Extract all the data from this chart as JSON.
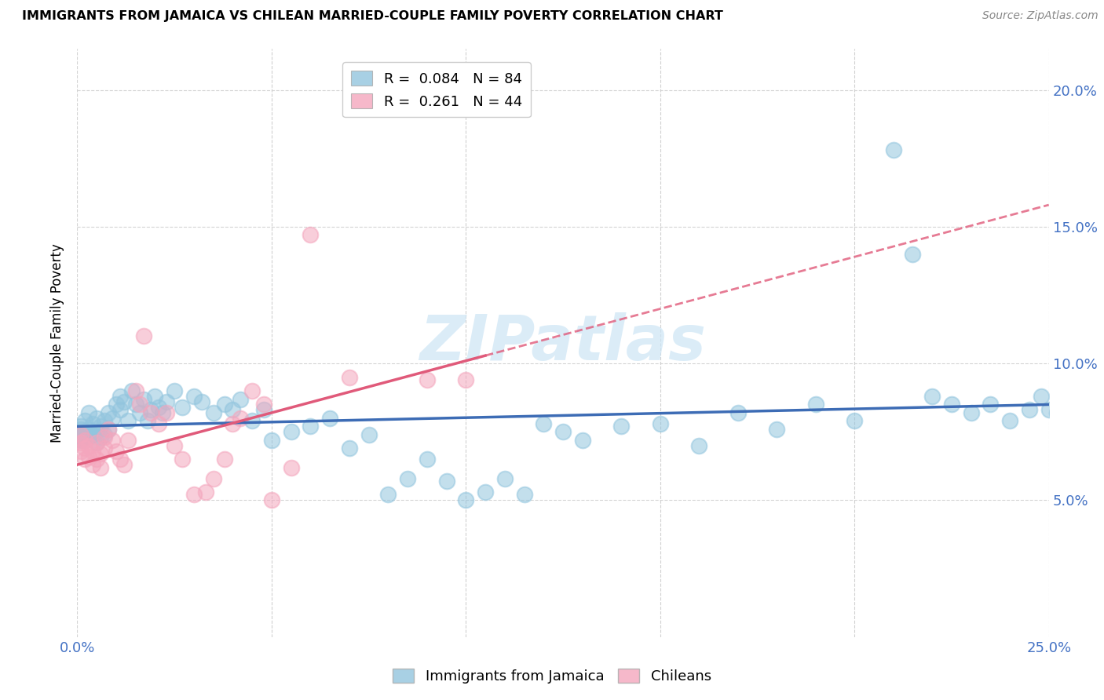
{
  "title": "IMMIGRANTS FROM JAMAICA VS CHILEAN MARRIED-COUPLE FAMILY POVERTY CORRELATION CHART",
  "source": "Source: ZipAtlas.com",
  "ylabel": "Married-Couple Family Poverty",
  "xlim": [
    0.0,
    0.25
  ],
  "ylim": [
    0.0,
    0.215
  ],
  "blue_color": "#92c5de",
  "pink_color": "#f4a6bd",
  "blue_line_color": "#3d6cb5",
  "pink_line_color": "#e05a7a",
  "watermark_color": "#cce5f5",
  "jamaica_N": 84,
  "chilean_N": 44,
  "jamaica_R": "0.084",
  "chilean_R": "0.261",
  "jamaica_intercept": 0.077,
  "jamaica_slope": 0.032,
  "chilean_intercept": 0.063,
  "chilean_slope": 0.38,
  "jamaica_x": [
    0.001,
    0.001,
    0.001,
    0.001,
    0.001,
    0.002,
    0.002,
    0.002,
    0.003,
    0.003,
    0.003,
    0.004,
    0.004,
    0.005,
    0.005,
    0.005,
    0.006,
    0.006,
    0.007,
    0.007,
    0.008,
    0.008,
    0.009,
    0.01,
    0.011,
    0.011,
    0.012,
    0.013,
    0.014,
    0.015,
    0.016,
    0.017,
    0.018,
    0.019,
    0.02,
    0.021,
    0.022,
    0.023,
    0.025,
    0.027,
    0.03,
    0.032,
    0.035,
    0.038,
    0.04,
    0.042,
    0.045,
    0.048,
    0.05,
    0.055,
    0.06,
    0.065,
    0.07,
    0.075,
    0.08,
    0.085,
    0.09,
    0.095,
    0.1,
    0.105,
    0.11,
    0.115,
    0.12,
    0.125,
    0.13,
    0.14,
    0.15,
    0.16,
    0.17,
    0.18,
    0.19,
    0.2,
    0.21,
    0.215,
    0.22,
    0.225,
    0.23,
    0.235,
    0.24,
    0.245,
    0.248,
    0.25,
    0.252,
    0.255
  ],
  "jamaica_y": [
    0.075,
    0.077,
    0.072,
    0.076,
    0.073,
    0.075,
    0.072,
    0.079,
    0.073,
    0.076,
    0.082,
    0.074,
    0.078,
    0.071,
    0.075,
    0.08,
    0.073,
    0.077,
    0.074,
    0.079,
    0.082,
    0.076,
    0.08,
    0.085,
    0.083,
    0.088,
    0.086,
    0.079,
    0.09,
    0.085,
    0.082,
    0.087,
    0.079,
    0.083,
    0.088,
    0.084,
    0.082,
    0.086,
    0.09,
    0.084,
    0.088,
    0.086,
    0.082,
    0.085,
    0.083,
    0.087,
    0.079,
    0.083,
    0.072,
    0.075,
    0.077,
    0.08,
    0.069,
    0.074,
    0.052,
    0.058,
    0.065,
    0.057,
    0.05,
    0.053,
    0.058,
    0.052,
    0.078,
    0.075,
    0.072,
    0.077,
    0.078,
    0.07,
    0.082,
    0.076,
    0.085,
    0.079,
    0.178,
    0.14,
    0.088,
    0.085,
    0.082,
    0.085,
    0.079,
    0.083,
    0.088,
    0.083,
    0.082,
    0.08
  ],
  "chilean_x": [
    0.001,
    0.001,
    0.001,
    0.002,
    0.002,
    0.002,
    0.003,
    0.003,
    0.004,
    0.004,
    0.005,
    0.005,
    0.006,
    0.006,
    0.007,
    0.007,
    0.008,
    0.009,
    0.01,
    0.011,
    0.012,
    0.013,
    0.015,
    0.016,
    0.017,
    0.019,
    0.021,
    0.023,
    0.025,
    0.027,
    0.03,
    0.033,
    0.035,
    0.038,
    0.04,
    0.042,
    0.045,
    0.048,
    0.05,
    0.055,
    0.06,
    0.07,
    0.09,
    0.1
  ],
  "chilean_y": [
    0.068,
    0.071,
    0.074,
    0.065,
    0.069,
    0.072,
    0.066,
    0.07,
    0.063,
    0.068,
    0.071,
    0.065,
    0.062,
    0.067,
    0.069,
    0.073,
    0.076,
    0.072,
    0.068,
    0.065,
    0.063,
    0.072,
    0.09,
    0.085,
    0.11,
    0.082,
    0.078,
    0.082,
    0.07,
    0.065,
    0.052,
    0.053,
    0.058,
    0.065,
    0.078,
    0.08,
    0.09,
    0.085,
    0.05,
    0.062,
    0.147,
    0.095,
    0.094,
    0.094
  ]
}
